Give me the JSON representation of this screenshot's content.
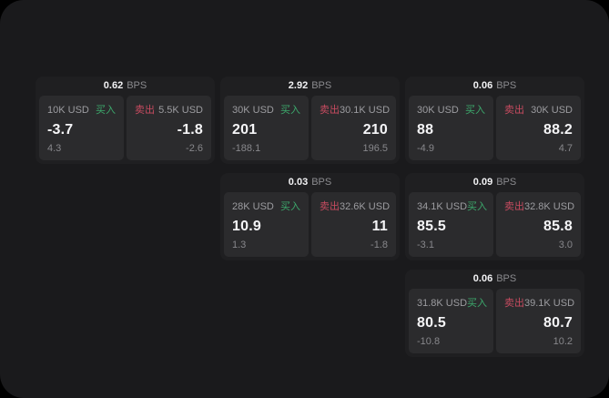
{
  "page": {
    "background": "#000000",
    "surface": "#1a1a1c"
  },
  "colors": {
    "card_bg": "#1f1f21",
    "panel_bg": "#2b2b2d",
    "buy": "#3ca86c",
    "sell": "#c74b60",
    "text_primary": "#f5f5f7",
    "text_secondary": "#9c9ca0",
    "text_muted": "#87878b"
  },
  "labels": {
    "bps_unit": "BPS",
    "buy": "买入",
    "sell": "卖出"
  },
  "cards": [
    {
      "row": 1,
      "col": 1,
      "bps": "0.62",
      "buy": {
        "amount": "10K USD",
        "value": "-3.7",
        "delta": "4.3"
      },
      "sell": {
        "amount": "5.5K USD",
        "value": "-1.8",
        "delta": "-2.6"
      }
    },
    {
      "row": 1,
      "col": 2,
      "bps": "2.92",
      "buy": {
        "amount": "30K USD",
        "value": "201",
        "delta": "-188.1"
      },
      "sell": {
        "amount": "30.1K USD",
        "value": "210",
        "delta": "196.5"
      }
    },
    {
      "row": 1,
      "col": 3,
      "bps": "0.06",
      "buy": {
        "amount": "30K USD",
        "value": "88",
        "delta": "-4.9"
      },
      "sell": {
        "amount": "30K USD",
        "value": "88.2",
        "delta": "4.7"
      }
    },
    {
      "row": 2,
      "col": 2,
      "bps": "0.03",
      "buy": {
        "amount": "28K USD",
        "value": "10.9",
        "delta": "1.3"
      },
      "sell": {
        "amount": "32.6K USD",
        "value": "11",
        "delta": "-1.8"
      }
    },
    {
      "row": 2,
      "col": 3,
      "bps": "0.09",
      "buy": {
        "amount": "34.1K USD",
        "value": "85.5",
        "delta": "-3.1"
      },
      "sell": {
        "amount": "32.8K USD",
        "value": "85.8",
        "delta": "3.0"
      }
    },
    {
      "row": 3,
      "col": 3,
      "bps": "0.06",
      "buy": {
        "amount": "31.8K USD",
        "value": "80.5",
        "delta": "-10.8"
      },
      "sell": {
        "amount": "39.1K USD",
        "value": "80.7",
        "delta": "10.2"
      }
    }
  ]
}
